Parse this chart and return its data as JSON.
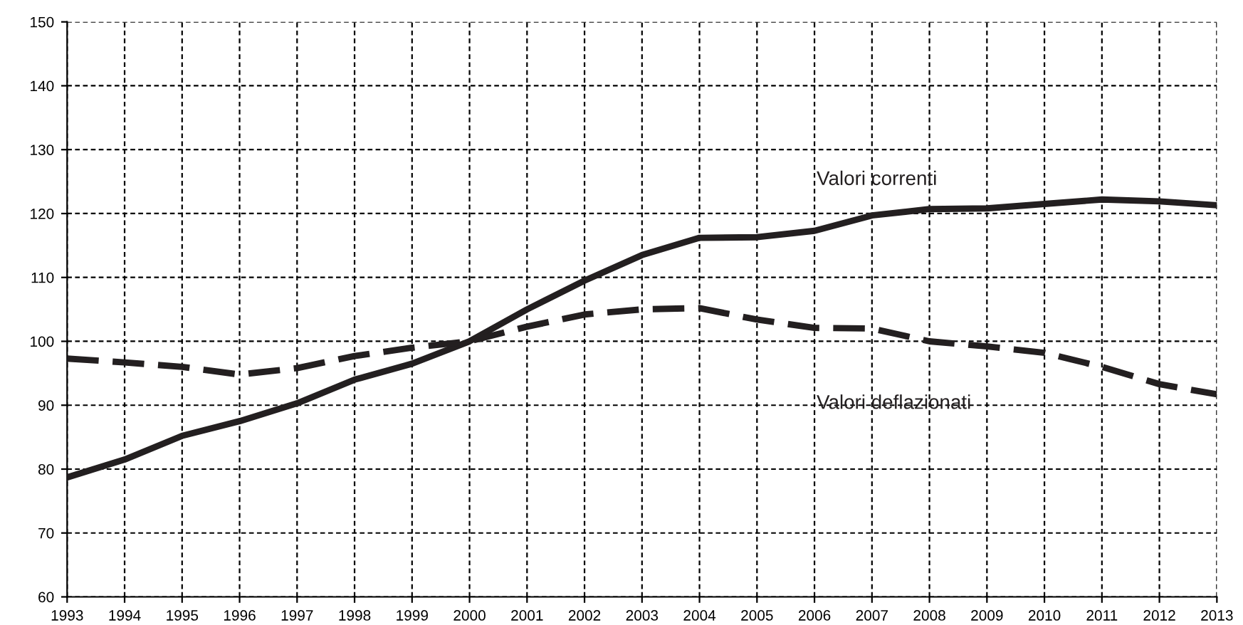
{
  "chart_data": {
    "type": "line",
    "x": [
      1993,
      1994,
      1995,
      1996,
      1997,
      1998,
      1999,
      2000,
      2001,
      2002,
      2003,
      2004,
      2005,
      2006,
      2007,
      2008,
      2009,
      2010,
      2011,
      2012,
      2013
    ],
    "series": [
      {
        "name": "Valori correnti",
        "color": "#231f20",
        "line_style": "solid",
        "values": [
          78.7,
          81.5,
          85.2,
          87.5,
          90.3,
          94.0,
          96.5,
          100,
          105,
          109.5,
          113.5,
          116.2,
          116.3,
          117.3,
          119.7,
          120.7,
          120.8,
          121.5,
          122.2,
          121.9,
          121.3
        ]
      },
      {
        "name": "Valori deflazionati",
        "color": "#231f20",
        "line_style": "dashed",
        "values": [
          97.3,
          96.7,
          96.0,
          94.8,
          95.8,
          97.7,
          99.0,
          100,
          102.3,
          104.2,
          105.0,
          105.2,
          103.4,
          102.1,
          102.0,
          100.0,
          99.2,
          98.2,
          96.0,
          93.3,
          91.7
        ]
      }
    ],
    "xlim": [
      1993,
      2013
    ],
    "xticks": [
      1993,
      1994,
      1995,
      1996,
      1997,
      1998,
      1999,
      2000,
      2001,
      2002,
      2003,
      2004,
      2005,
      2006,
      2007,
      2008,
      2009,
      2010,
      2011,
      2012,
      2013
    ],
    "ylim": [
      60,
      150
    ],
    "yticks": [
      60,
      70,
      80,
      90,
      100,
      110,
      120,
      130,
      140,
      150
    ],
    "grid": true,
    "legend": false,
    "marker": "none"
  }
}
